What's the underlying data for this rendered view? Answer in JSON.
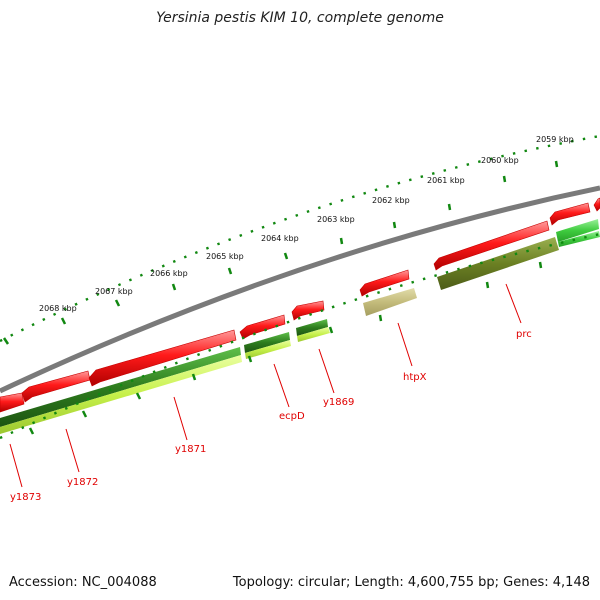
{
  "title": "Yersinia pestis KIM 10, complete genome",
  "accession": "Accession: NC_004088",
  "summary": "Topology: circular; Length: 4,600,755 bp; Genes: 4,148",
  "kbp_labels": [
    "2059 kbp",
    "2060 kbp",
    "2061 kbp",
    "2062 kbp",
    "2063 kbp",
    "2064 kbp",
    "2065 kbp",
    "2066 kbp",
    "2067 kbp",
    "2068 kbp"
  ],
  "gene_labels": [
    "prc",
    "htpX",
    "y1869",
    "ecpD",
    "y1871",
    "y1872",
    "y1873"
  ],
  "colors": {
    "backbone": "#808080",
    "forward_gene": "#ff1a1a",
    "cog_dark_green": "#2e7d1e",
    "cog_olive": "#6b8e23",
    "cog_khaki": "#c8c080",
    "cog_light_green": "#44cc44",
    "cog_yellow_green": "#c8f050",
    "tick": "#118811",
    "label": "#e00000"
  }
}
